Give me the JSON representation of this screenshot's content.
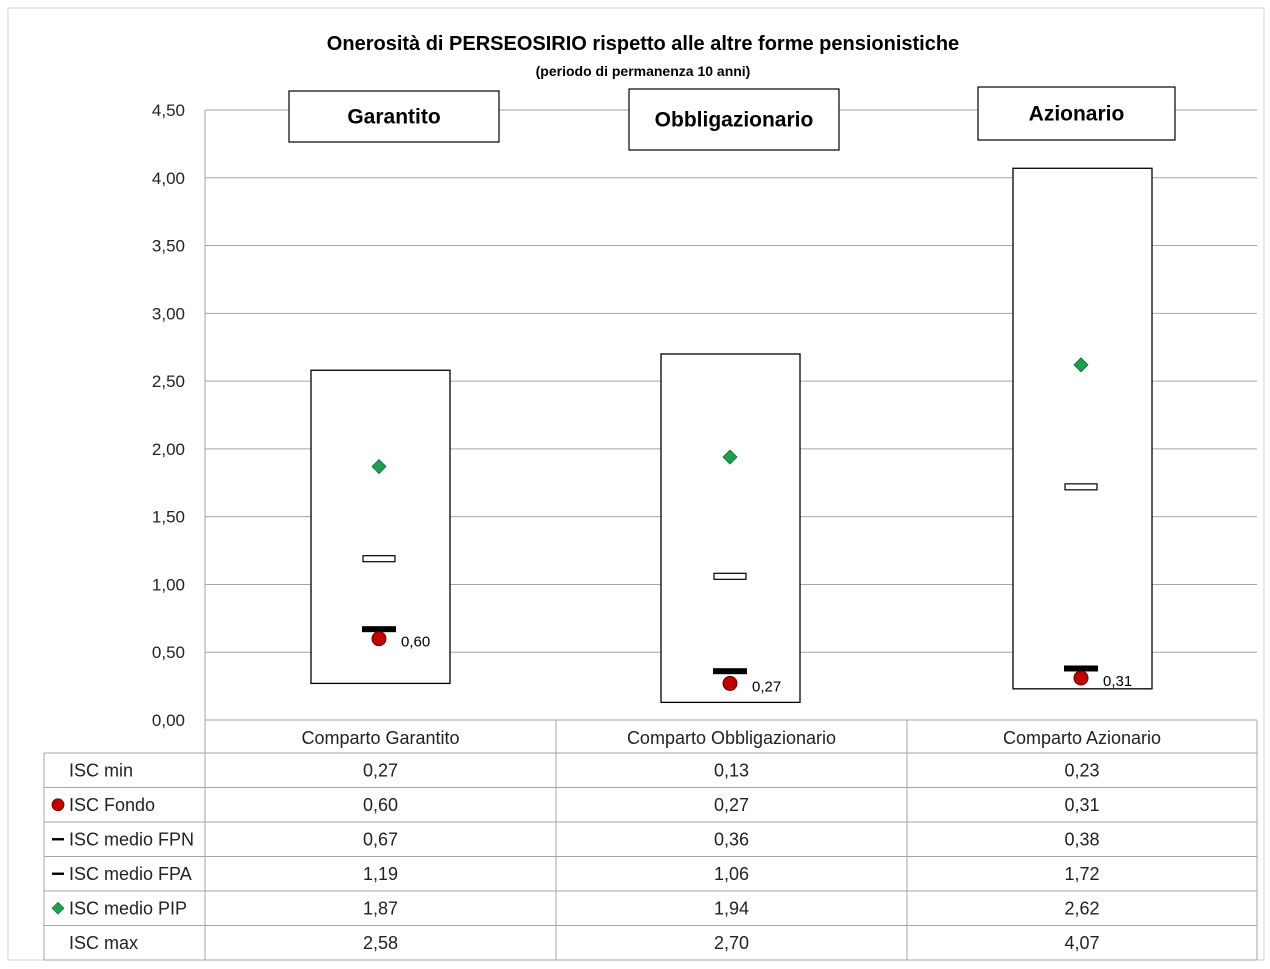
{
  "chart_data": {
    "type": "box",
    "title": "Onerosità di PERSEOSIRIO rispetto alle altre forme pensionistiche",
    "subtitle": "(periodo di permanenza 10 anni)",
    "panel_labels": [
      "Garantito",
      "Obbligazionario",
      "Azionario"
    ],
    "categories": [
      "Comparto Garantito",
      "Comparto Obbligazionario",
      "Comparto Azionario"
    ],
    "ylim": [
      0,
      4.5
    ],
    "yticks": [
      "0,00",
      "0,50",
      "1,00",
      "1,50",
      "2,00",
      "2,50",
      "3,00",
      "3,50",
      "4,00",
      "4,50"
    ],
    "grid": true,
    "series": [
      {
        "name": "ISC min",
        "marker": "none",
        "values": [
          0.27,
          0.13,
          0.23
        ],
        "labels": [
          "0,27",
          "0,13",
          "0,23"
        ]
      },
      {
        "name": "ISC Fondo",
        "marker": "circle",
        "color": "#c00000",
        "values": [
          0.6,
          0.27,
          0.31
        ],
        "labels": [
          "0,60",
          "0,27",
          "0,31"
        ]
      },
      {
        "name": "ISC medio FPN",
        "marker": "dash-black",
        "color": "#000000",
        "values": [
          0.67,
          0.36,
          0.38
        ],
        "labels": [
          "0,67",
          "0,36",
          "0,38"
        ]
      },
      {
        "name": "ISC medio FPA",
        "marker": "dash-white",
        "color": "#ffffff",
        "values": [
          1.19,
          1.06,
          1.72
        ],
        "labels": [
          "1,19",
          "1,06",
          "1,72"
        ]
      },
      {
        "name": "ISC medio PIP",
        "marker": "diamond",
        "color": "#1e9e50",
        "values": [
          1.87,
          1.94,
          2.62
        ],
        "labels": [
          "1,87",
          "1,94",
          "2,62"
        ]
      },
      {
        "name": "ISC max",
        "marker": "none",
        "values": [
          2.58,
          2.7,
          4.07
        ],
        "labels": [
          "2,58",
          "2,70",
          "4,07"
        ]
      }
    ],
    "data_labels": [
      "0,60",
      "0,27",
      "0,31"
    ]
  }
}
